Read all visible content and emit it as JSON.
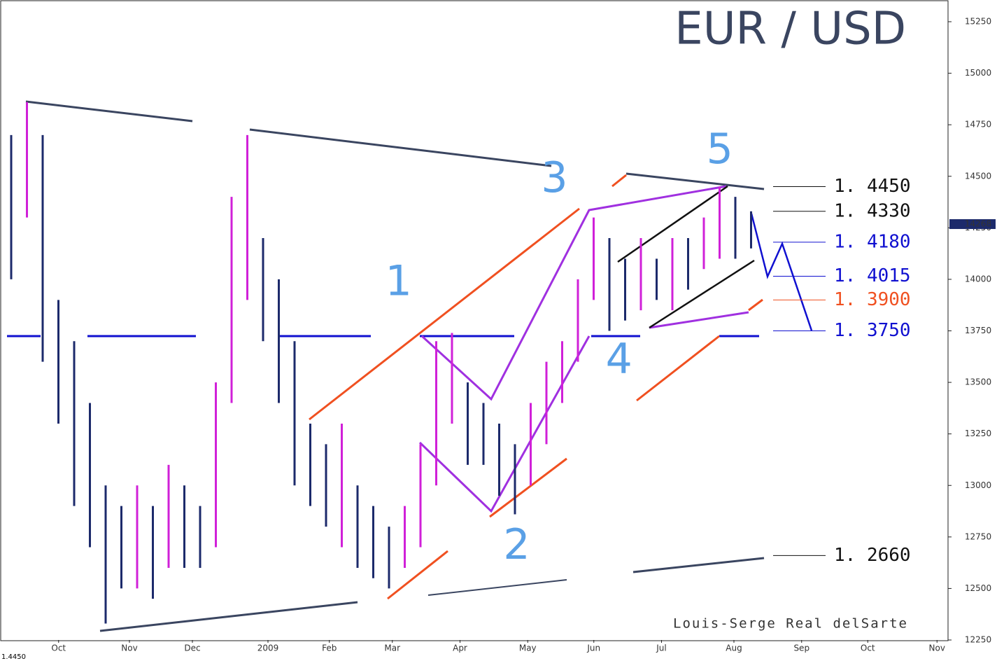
{
  "chart_data": {
    "type": "bar_range",
    "title": "EUR / USD",
    "author": "Louis-Serge Real delSarte",
    "corner_label": "1.4450",
    "last_price": 14268,
    "color": "#1c2a6b",
    "up_color": "#d020d8",
    "x": [
      0,
      1,
      2,
      3,
      4,
      5,
      6,
      7,
      8,
      9,
      10,
      11,
      12,
      13,
      14,
      15,
      16,
      17,
      18,
      19,
      20,
      21,
      22,
      23,
      24,
      25,
      26,
      27,
      28,
      29,
      30,
      31,
      32,
      33,
      34,
      35,
      36,
      37,
      38,
      39,
      40,
      41,
      42,
      43,
      44,
      45,
      46,
      47
    ],
    "high": [
      14700,
      14860,
      14700,
      13900,
      13700,
      13400,
      13000,
      12900,
      13000,
      12900,
      13100,
      13000,
      12900,
      13500,
      14400,
      14700,
      14200,
      14000,
      13700,
      13300,
      13200,
      13300,
      13000,
      12900,
      12800,
      12900,
      13200,
      13700,
      13740,
      13500,
      13400,
      13300,
      13200,
      13400,
      13600,
      13700,
      14000,
      14300,
      14200,
      14100,
      14200,
      14100,
      14200,
      14200,
      14300,
      14450,
      14400,
      14330
    ],
    "low": [
      14000,
      14300,
      13600,
      13300,
      12900,
      12700,
      12330,
      12500,
      12500,
      12450,
      12600,
      12600,
      12600,
      12700,
      13400,
      13900,
      13700,
      13400,
      13000,
      12900,
      12800,
      12700,
      12600,
      12550,
      12500,
      12600,
      12700,
      13000,
      13300,
      13100,
      13100,
      12950,
      12860,
      13000,
      13200,
      13400,
      13600,
      13900,
      13750,
      13800,
      13850,
      13900,
      13850,
      13950,
      14050,
      14100,
      14100,
      14150
    ],
    "xlim": [
      0,
      60
    ],
    "ylim": [
      12250,
      15250
    ],
    "yticks": [
      12250,
      12500,
      12750,
      13000,
      13250,
      13500,
      13750,
      14000,
      14250,
      14500,
      14750,
      15000,
      15250
    ],
    "xticks": [
      {
        "value": 3.5,
        "label": "Oct"
      },
      {
        "value": 8,
        "label": "Nov"
      },
      {
        "value": 12,
        "label": "Dec"
      },
      {
        "value": 16.8,
        "label": "2009"
      },
      {
        "value": 20.7,
        "label": "Feb"
      },
      {
        "value": 24.7,
        "label": "Mar"
      },
      {
        "value": 29,
        "label": "Apr"
      },
      {
        "value": 33.3,
        "label": "May"
      },
      {
        "value": 37.5,
        "label": "Jun"
      },
      {
        "value": 41.8,
        "label": "Jul"
      },
      {
        "value": 46.4,
        "label": "Aug"
      },
      {
        "value": 50.7,
        "label": "Sep"
      },
      {
        "value": 54.9,
        "label": "Oct"
      },
      {
        "value": 59.3,
        "label": "Nov"
      }
    ],
    "levels": [
      {
        "label": "1. 4450",
        "value": 14450,
        "color": "#111111"
      },
      {
        "label": "1. 4330",
        "value": 14330,
        "color": "#111111"
      },
      {
        "label": "1. 4180",
        "value": 14180,
        "color": "#1010d0"
      },
      {
        "label": "1. 4015",
        "value": 14015,
        "color": "#1010d0"
      },
      {
        "label": "1. 3900",
        "value": 13900,
        "color": "#f05020"
      },
      {
        "label": "1. 3750",
        "value": 13750,
        "color": "#1010d0"
      },
      {
        "label": "1. 2660",
        "value": 12660,
        "color": "#111111"
      }
    ],
    "waves": [
      {
        "label": "1",
        "x": 25.1,
        "y": 13980
      },
      {
        "label": "2",
        "x": 32.6,
        "y": 12700
      },
      {
        "label": "3",
        "x": 35,
        "y": 14480
      },
      {
        "label": "4",
        "x": 39.1,
        "y": 13600
      },
      {
        "label": "5",
        "x": 45.5,
        "y": 14620
      }
    ]
  }
}
